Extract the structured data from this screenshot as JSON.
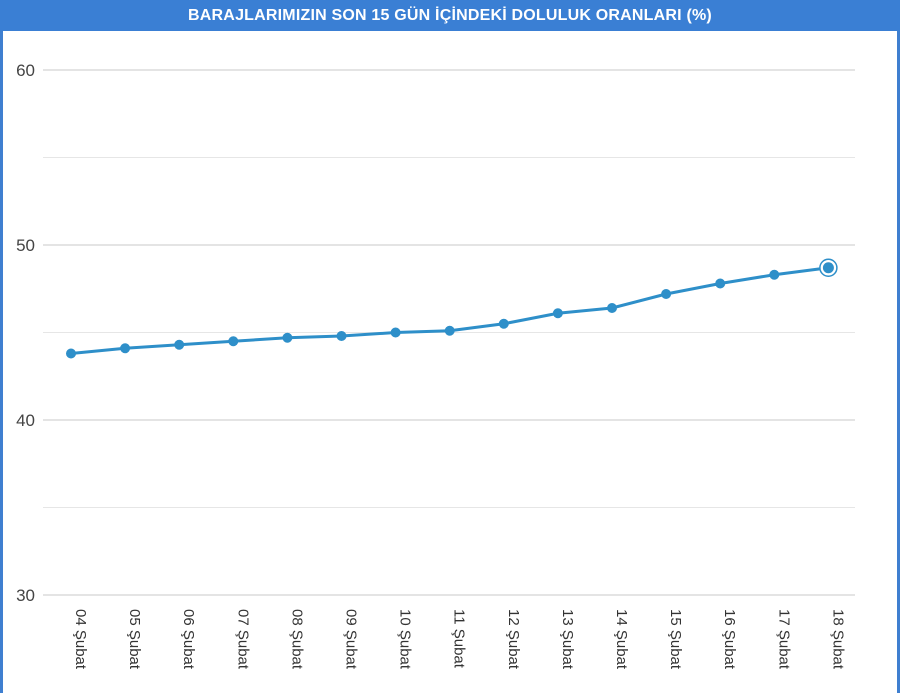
{
  "chart_data": {
    "type": "line",
    "title": "BARAJLARIMIZIN SON 15 GÜN İÇİNDEKİ DOLULUK ORANLARI (%)",
    "xlabel": "",
    "ylabel": "",
    "categories": [
      "04 Şubat",
      "05 Şubat",
      "06 Şubat",
      "07 Şubat",
      "08 Şubat",
      "09 Şubat",
      "10 Şubat",
      "11 Şubat",
      "12 Şubat",
      "13 Şubat",
      "14 Şubat",
      "15 Şubat",
      "16 Şubat",
      "17 Şubat",
      "18 Şubat"
    ],
    "series": [
      {
        "values": [
          43.8,
          44.1,
          44.3,
          44.5,
          44.7,
          44.8,
          45.0,
          45.1,
          45.5,
          46.1,
          46.4,
          47.2,
          47.8,
          48.3,
          48.7
        ]
      }
    ],
    "ylim": [
      30,
      60
    ],
    "yticks": [
      30,
      40,
      50,
      60
    ],
    "grid": true,
    "line_color": "#2e8fc9",
    "highlight_last_point": true
  }
}
